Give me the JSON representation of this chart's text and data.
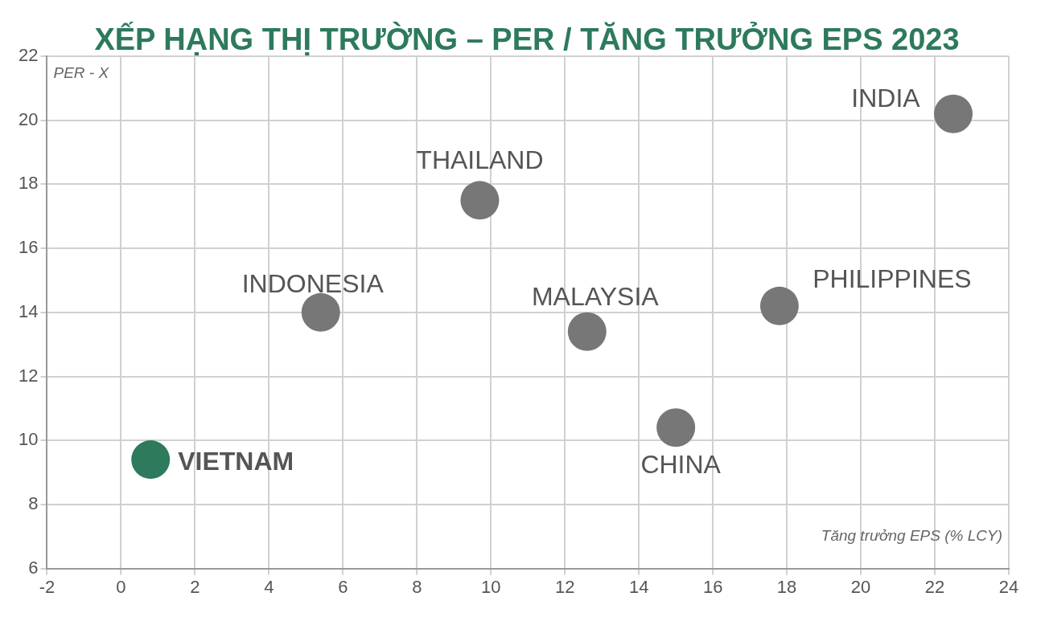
{
  "chart_data": {
    "type": "scatter",
    "title": "XẾP HẠNG THỊ TRƯỜNG – PER / TĂNG TRƯỞNG EPS 2023",
    "xlabel": "Tăng trưởng EPS (% LCY)",
    "ylabel": "PER - X",
    "x": [
      0.8,
      5.4,
      9.7,
      12.6,
      15.0,
      17.8,
      22.5
    ],
    "values": [
      9.4,
      14.0,
      17.5,
      13.4,
      10.4,
      14.2,
      20.2
    ],
    "colors": [
      "#2d7a5c",
      "#777777",
      "#777777",
      "#777777",
      "#777777",
      "#777777",
      "#777777"
    ],
    "annotations": [
      {
        "text": "VIETNAM",
        "x": 0.8,
        "y": 9.4
      },
      {
        "text": "INDONESIA",
        "x": 5.4,
        "y": 14.0
      },
      {
        "text": "THAILAND",
        "x": 9.7,
        "y": 17.5
      },
      {
        "text": "MALAYSIA",
        "x": 12.6,
        "y": 13.4
      },
      {
        "text": "CHINA",
        "x": 15.0,
        "y": 10.4
      },
      {
        "text": "PHILIPPINES",
        "x": 17.8,
        "y": 14.2
      },
      {
        "text": "INDIA",
        "x": 22.5,
        "y": 20.2
      }
    ],
    "xlim": [
      -2,
      24
    ],
    "xticks": [
      -2,
      0,
      2,
      4,
      6,
      8,
      10,
      12,
      14,
      16,
      18,
      20,
      22,
      24
    ],
    "ylim": [
      6,
      22
    ],
    "yticks": [
      6,
      8,
      10,
      12,
      14,
      16,
      18,
      20,
      22
    ],
    "grid": true,
    "marker": "circle",
    "legend": false
  }
}
